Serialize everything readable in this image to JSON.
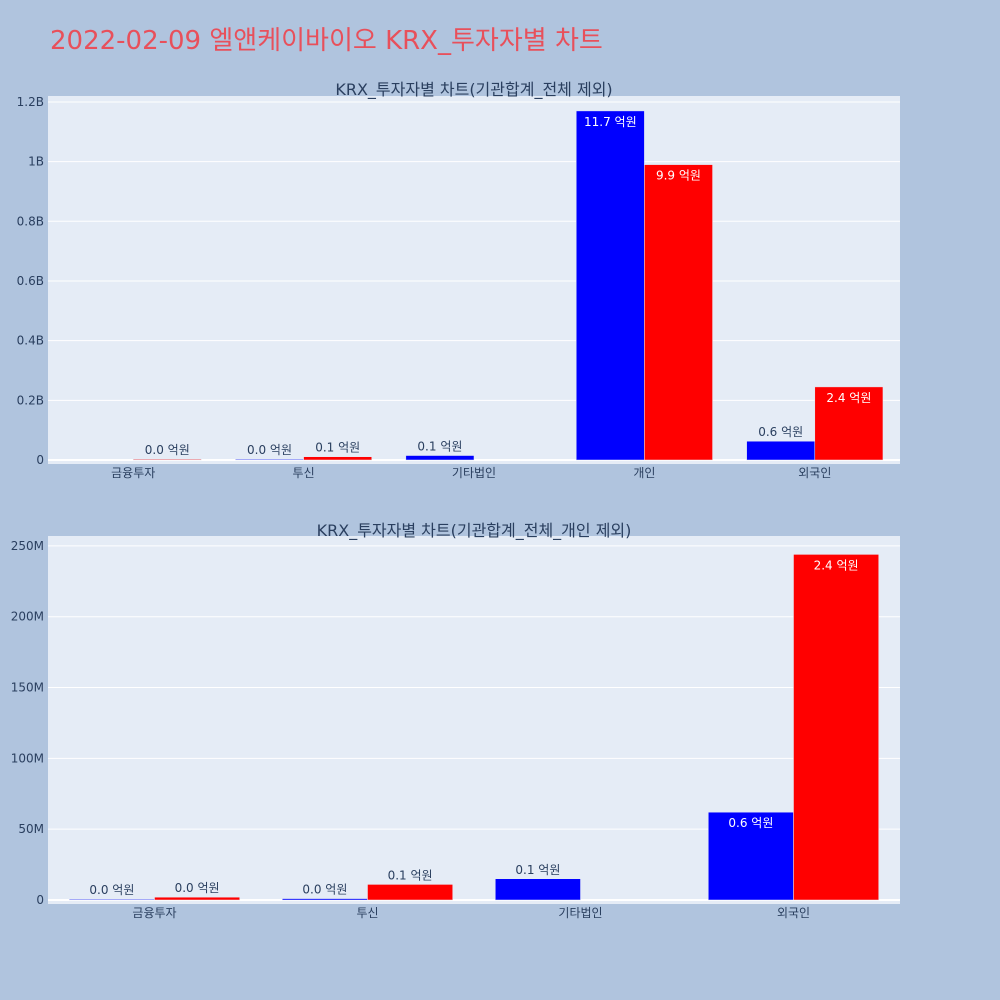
{
  "page_title": "2022-02-09 엘앤케이바이오 KRX_투자자별 차트",
  "colors": {
    "title": "#e8505b",
    "series_a": "#0000ff",
    "series_b": "#ff0000",
    "plot_bg": "#e5ecf6",
    "page_bg": "#b0c4de"
  },
  "chart_data": [
    {
      "type": "bar",
      "title": "KRX_투자자별 차트(기관합계_전체 제외)",
      "categories": [
        "금융투자",
        "투신",
        "기타법인",
        "개인",
        "외국인"
      ],
      "ylim": [
        0,
        1220000000
      ],
      "yticks": [
        {
          "value": 0,
          "label": "0"
        },
        {
          "value": 200000000,
          "label": "0.2B"
        },
        {
          "value": 400000000,
          "label": "0.4B"
        },
        {
          "value": 600000000,
          "label": "0.6B"
        },
        {
          "value": 800000000,
          "label": "0.8B"
        },
        {
          "value": 1000000000,
          "label": "1B"
        },
        {
          "value": 1200000000,
          "label": "1.2B"
        }
      ],
      "series": [
        {
          "color": "#0000ff",
          "values": [
            null,
            1000000,
            15000000,
            1170000000,
            63000000
          ],
          "labels": [
            "",
            "0.0 억원",
            "0.1 억원",
            "11.7 억원",
            "0.6 억원"
          ]
        },
        {
          "color": "#ff0000",
          "values": [
            2000000,
            11000000,
            null,
            990000000,
            245000000
          ],
          "labels": [
            "0.0 억원",
            "0.1 억원",
            "",
            "9.9 억원",
            "2.4 억원"
          ]
        }
      ]
    },
    {
      "type": "bar",
      "title": "KRX_투자자별 차트(기관합계_전체_개인 제외)",
      "categories": [
        "금융투자",
        "투신",
        "기타법인",
        "외국인"
      ],
      "ylim": [
        0,
        257000000
      ],
      "yticks": [
        {
          "value": 0,
          "label": "0"
        },
        {
          "value": 50000000,
          "label": "50M"
        },
        {
          "value": 100000000,
          "label": "100M"
        },
        {
          "value": 150000000,
          "label": "150M"
        },
        {
          "value": 200000000,
          "label": "200M"
        },
        {
          "value": 250000000,
          "label": "250M"
        }
      ],
      "series": [
        {
          "color": "#0000ff",
          "values": [
            0,
            1000000,
            15000000,
            62000000
          ],
          "labels": [
            "0.0 억원",
            "0.0 억원",
            "0.1 억원",
            "0.6 억원"
          ]
        },
        {
          "color": "#ff0000",
          "values": [
            2000000,
            11000000,
            null,
            244000000
          ],
          "labels": [
            "0.0 억원",
            "0.1 억원",
            "",
            "2.4 억원"
          ]
        }
      ]
    }
  ]
}
